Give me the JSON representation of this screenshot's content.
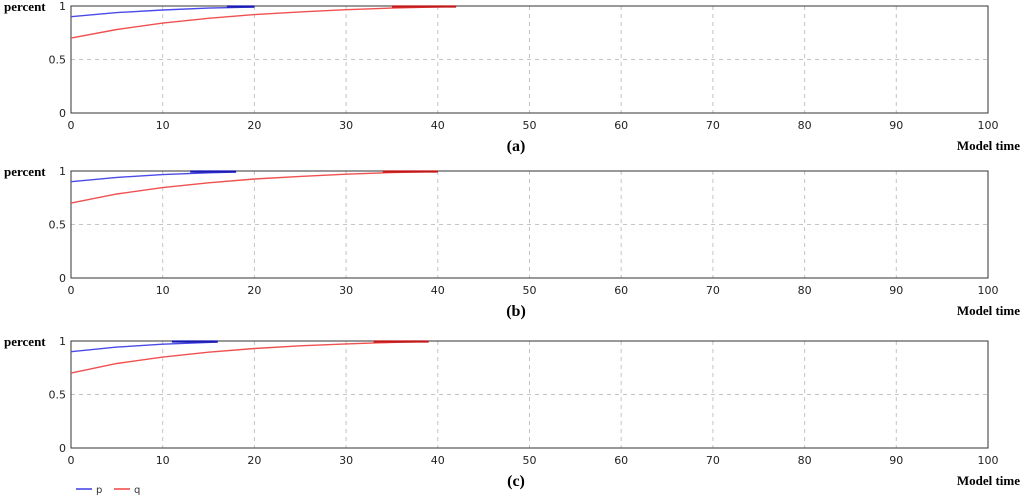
{
  "chart_data": [
    {
      "type": "line",
      "panel_label": "(a)",
      "xlabel": "Model time",
      "ylabel": "percent",
      "xlim": [
        0,
        100
      ],
      "ylim": [
        0,
        1
      ],
      "xticks": [
        0,
        10,
        20,
        30,
        40,
        50,
        60,
        70,
        80,
        90,
        100
      ],
      "yticks": [
        0,
        0.5,
        1
      ],
      "ytick_labels": [
        "0",
        "0.5",
        "1"
      ],
      "grid": true,
      "series": [
        {
          "name": "p",
          "color": "#4a4ae8",
          "sat_color": "#1a1ab0",
          "x": [
            0,
            5,
            10,
            15,
            20
          ],
          "y": [
            0.9,
            0.938,
            0.963,
            0.98,
            0.99
          ]
        },
        {
          "name": "q",
          "color": "#f05050",
          "sat_color": "#c01818",
          "x": [
            0,
            5,
            10,
            15,
            20,
            25,
            30,
            35,
            40,
            42
          ],
          "y": [
            0.7,
            0.78,
            0.84,
            0.885,
            0.92,
            0.945,
            0.965,
            0.98,
            0.992,
            0.995
          ]
        }
      ],
      "saturation": [
        {
          "series": "p",
          "from": 17,
          "to": 20
        },
        {
          "series": "q",
          "from": 35,
          "to": 42
        }
      ]
    },
    {
      "type": "line",
      "panel_label": "(b)",
      "xlabel": "Model time",
      "ylabel": "percent",
      "xlim": [
        0,
        100
      ],
      "ylim": [
        0,
        1
      ],
      "xticks": [
        0,
        10,
        20,
        30,
        40,
        50,
        60,
        70,
        80,
        90,
        100
      ],
      "yticks": [
        0,
        0.5,
        1
      ],
      "ytick_labels": [
        "0",
        "0.5",
        "1"
      ],
      "grid": true,
      "series": [
        {
          "name": "p",
          "color": "#4a4ae8",
          "sat_color": "#1a1ab0",
          "x": [
            0,
            5,
            10,
            15,
            18
          ],
          "y": [
            0.9,
            0.94,
            0.966,
            0.983,
            0.99
          ]
        },
        {
          "name": "q",
          "color": "#f05050",
          "sat_color": "#c01818",
          "x": [
            0,
            5,
            10,
            15,
            20,
            25,
            30,
            35,
            40
          ],
          "y": [
            0.7,
            0.785,
            0.845,
            0.89,
            0.925,
            0.95,
            0.97,
            0.985,
            0.995
          ]
        }
      ],
      "saturation": [
        {
          "series": "p",
          "from": 13,
          "to": 18
        },
        {
          "series": "q",
          "from": 34,
          "to": 40
        }
      ]
    },
    {
      "type": "line",
      "panel_label": "(c)",
      "xlabel": "Model time",
      "ylabel": "percent",
      "xlim": [
        0,
        100
      ],
      "ylim": [
        0,
        1
      ],
      "xticks": [
        0,
        10,
        20,
        30,
        40,
        50,
        60,
        70,
        80,
        90,
        100
      ],
      "yticks": [
        0,
        0.5,
        1
      ],
      "ytick_labels": [
        "0",
        "0.5",
        "1"
      ],
      "grid": true,
      "series": [
        {
          "name": "p",
          "color": "#4a4ae8",
          "sat_color": "#1a1ab0",
          "x": [
            0,
            5,
            10,
            15,
            16
          ],
          "y": [
            0.9,
            0.943,
            0.97,
            0.987,
            0.99
          ]
        },
        {
          "name": "q",
          "color": "#f05050",
          "sat_color": "#c01818",
          "x": [
            0,
            5,
            10,
            15,
            20,
            25,
            30,
            35,
            39
          ],
          "y": [
            0.7,
            0.79,
            0.85,
            0.895,
            0.93,
            0.955,
            0.973,
            0.987,
            0.995
          ]
        }
      ],
      "saturation": [
        {
          "series": "p",
          "from": 11,
          "to": 16
        },
        {
          "series": "q",
          "from": 33,
          "to": 39
        }
      ]
    }
  ],
  "legend": {
    "placement": "bottom-left",
    "items": [
      {
        "label": "p",
        "color": "#4a4ae8"
      },
      {
        "label": "q",
        "color": "#f05050"
      }
    ]
  }
}
